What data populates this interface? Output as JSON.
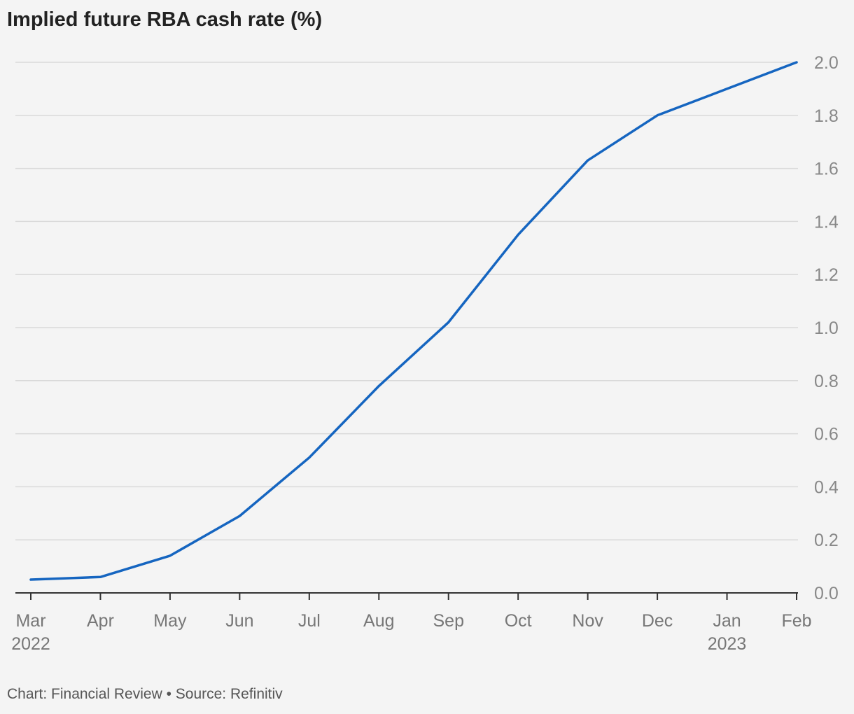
{
  "title": "Implied future RBA cash rate (%)",
  "footer": "Chart: Financial Review • Source: Refinitiv",
  "colors": {
    "background": "#f4f4f4",
    "line": "#1565c0",
    "grid": "#d9d9d9",
    "axis": "#333333",
    "tick_text": "#888888"
  },
  "chart_data": {
    "type": "line",
    "title": "Implied future RBA cash rate (%)",
    "xlabel": "",
    "ylabel": "",
    "x": [
      "2022-03",
      "2022-04",
      "2022-05",
      "2022-06",
      "2022-07",
      "2022-08",
      "2022-09",
      "2022-10",
      "2022-11",
      "2022-12",
      "2023-01",
      "2023-02"
    ],
    "x_tick_labels": [
      {
        "month": "Mar",
        "year": "2022"
      },
      {
        "month": "Apr",
        "year": ""
      },
      {
        "month": "May",
        "year": ""
      },
      {
        "month": "Jun",
        "year": ""
      },
      {
        "month": "Jul",
        "year": ""
      },
      {
        "month": "Aug",
        "year": ""
      },
      {
        "month": "Sep",
        "year": ""
      },
      {
        "month": "Oct",
        "year": ""
      },
      {
        "month": "Nov",
        "year": ""
      },
      {
        "month": "Dec",
        "year": ""
      },
      {
        "month": "Jan",
        "year": "2023"
      },
      {
        "month": "Feb",
        "year": ""
      }
    ],
    "series": [
      {
        "values": [
          0.05,
          0.06,
          0.14,
          0.29,
          0.51,
          0.78,
          1.02,
          1.35,
          1.63,
          1.8,
          1.9,
          2.0
        ]
      }
    ],
    "ylim": [
      0,
      2.0
    ],
    "y_ticks": [
      "0.0",
      "0.2",
      "0.4",
      "0.6",
      "0.8",
      "1.0",
      "1.2",
      "1.4",
      "1.6",
      "1.8",
      "2.0"
    ],
    "y_axis_side": "right",
    "grid": true,
    "legend": "none"
  }
}
